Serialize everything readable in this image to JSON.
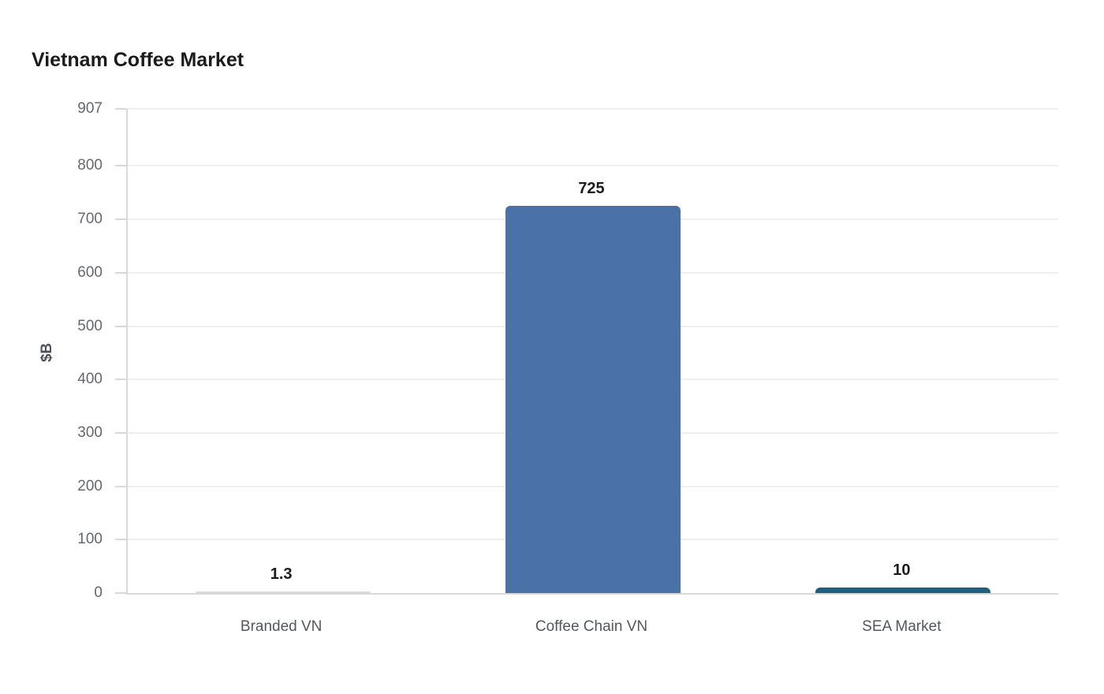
{
  "page": {
    "title": "Vietnam Coffee Market"
  },
  "chart_data": {
    "type": "bar",
    "title": "Vietnam Coffee Market",
    "xlabel": "",
    "ylabel": "$B",
    "categories": [
      "Branded VN",
      "Coffee Chain VN",
      "SEA Market"
    ],
    "values": [
      1.3,
      725,
      10
    ],
    "value_labels": [
      "1.3",
      "725",
      "10"
    ],
    "bar_colors": [
      "#d9d9d9",
      "#4a72a8",
      "#1e5f80"
    ],
    "yticks": [
      0,
      100,
      200,
      300,
      400,
      500,
      600,
      700,
      800,
      907
    ],
    "ylim": [
      0,
      907
    ],
    "grid": true,
    "legend_position": "none",
    "colors": {
      "grid": "#efefef",
      "axis": "#d9d9d9",
      "tick_text": "#64686f",
      "category_text": "#53575e",
      "value_text": "#1c1c1c",
      "title_text": "#1b1b1b"
    }
  }
}
